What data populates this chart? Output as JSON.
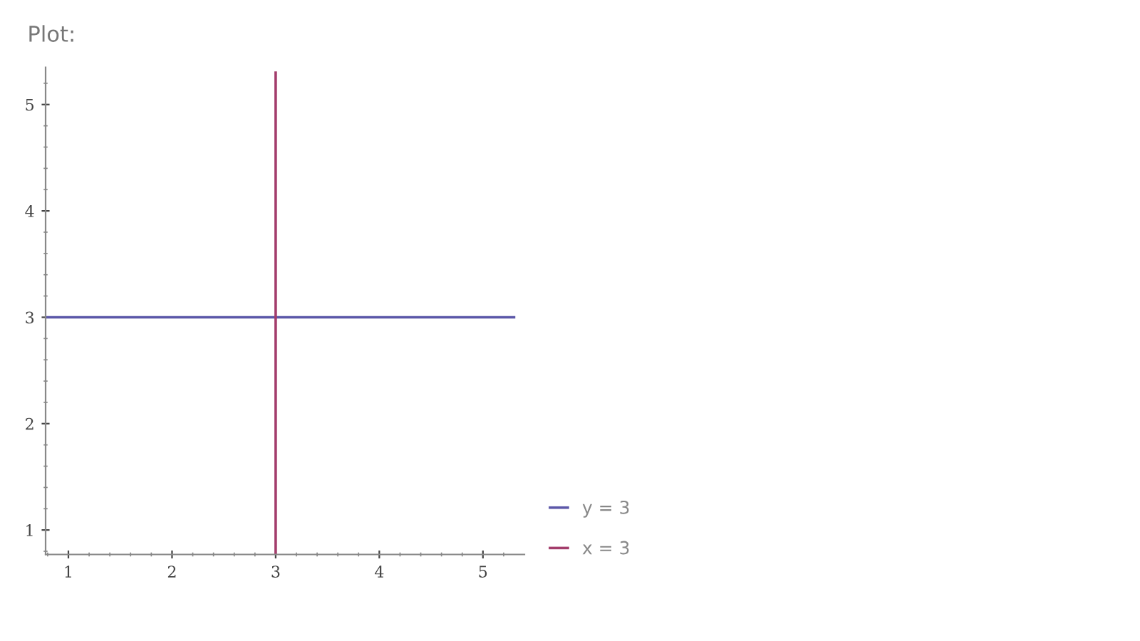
{
  "chart_data": {
    "type": "line",
    "title": "Plot:",
    "series": [
      {
        "name": "y = 3",
        "color": "#5b57a8",
        "x": [
          0.78,
          5.3
        ],
        "values": [
          3,
          3
        ]
      },
      {
        "name": "x = 3",
        "color": "#a33d6b",
        "x": [
          3,
          3
        ],
        "values": [
          0.77,
          5.3
        ]
      }
    ],
    "xlim": [
      0.78,
      5.4
    ],
    "ylim": [
      0.77,
      5.35
    ],
    "xticks": [
      1,
      2,
      3,
      4,
      5
    ],
    "yticks": [
      1,
      2,
      3,
      4,
      5
    ],
    "grid": false,
    "legend": "bottom right",
    "marker": "none",
    "line_style": "solid"
  }
}
